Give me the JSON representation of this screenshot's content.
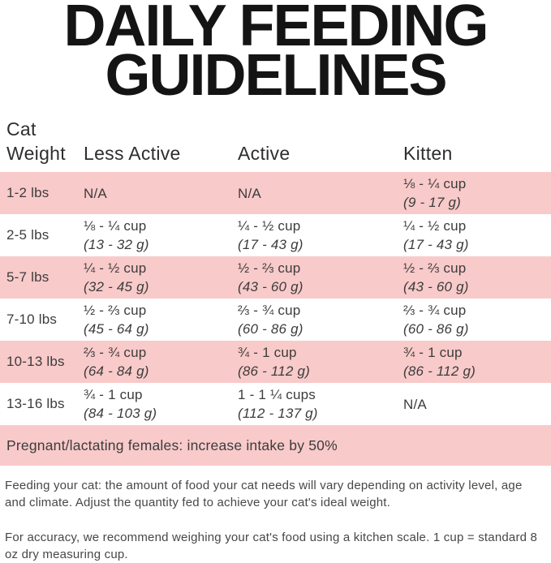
{
  "title": {
    "line1": "DAILY FEEDING",
    "line2": "GUIDELINES"
  },
  "colors": {
    "row_pink": "#f9caca",
    "title_black": "#141414",
    "body_text": "#3c3c3c"
  },
  "table": {
    "headers": {
      "weight_line1": "Cat",
      "weight_line2": "Weight",
      "less_active": "Less Active",
      "active": "Active",
      "kitten": "Kitten"
    },
    "rows": [
      {
        "weight": "1-2 lbs",
        "less_active": {
          "cups": "N/A",
          "grams": ""
        },
        "active": {
          "cups": "N/A",
          "grams": ""
        },
        "kitten": {
          "cups": "⅛ - ¼ cup",
          "grams": "(9 - 17 g)"
        }
      },
      {
        "weight": "2-5 lbs",
        "less_active": {
          "cups": "⅛ - ¼ cup",
          "grams": "(13 - 32 g)"
        },
        "active": {
          "cups": "¼ - ½ cup",
          "grams": "(17 - 43 g)"
        },
        "kitten": {
          "cups": "¼ - ½ cup",
          "grams": "(17 - 43 g)"
        }
      },
      {
        "weight": "5-7 lbs",
        "less_active": {
          "cups": "¼ - ½ cup",
          "grams": "(32 - 45 g)"
        },
        "active": {
          "cups": "½ - ⅔ cup",
          "grams": "(43 - 60 g)"
        },
        "kitten": {
          "cups": "½ - ⅔ cup",
          "grams": "(43 - 60 g)"
        }
      },
      {
        "weight": "7-10 lbs",
        "less_active": {
          "cups": "½ - ⅔ cup",
          "grams": "(45 - 64 g)"
        },
        "active": {
          "cups": "⅔ - ¾ cup",
          "grams": "(60 - 86 g)"
        },
        "kitten": {
          "cups": "⅔ - ¾ cup",
          "grams": "(60 - 86 g)"
        }
      },
      {
        "weight": "10-13 lbs",
        "less_active": {
          "cups": "⅔ - ¾ cup",
          "grams": "(64 - 84 g)"
        },
        "active": {
          "cups": "¾ - 1 cup",
          "grams": "(86 - 112 g)"
        },
        "kitten": {
          "cups": "¾ - 1 cup",
          "grams": "(86 - 112 g)"
        }
      },
      {
        "weight": "13-16 lbs",
        "less_active": {
          "cups": "¾ - 1 cup",
          "grams": "(84 - 103 g)"
        },
        "active": {
          "cups": "1 - 1 ¼ cups",
          "grams": "(112 - 137 g)"
        },
        "kitten": {
          "cups": "N/A",
          "grams": ""
        }
      }
    ]
  },
  "banner": {
    "text": "Pregnant/lactating females: increase intake by 50%"
  },
  "notes": {
    "feeding": "Feeding your cat: the amount of food your cat needs will vary depending on activity level, age and climate. Adjust the quantity fed to achieve your cat's ideal weight.",
    "accuracy": "For accuracy, we recommend weighing your cat's food using a kitchen scale. 1 cup = standard 8 oz dry measuring cup."
  }
}
